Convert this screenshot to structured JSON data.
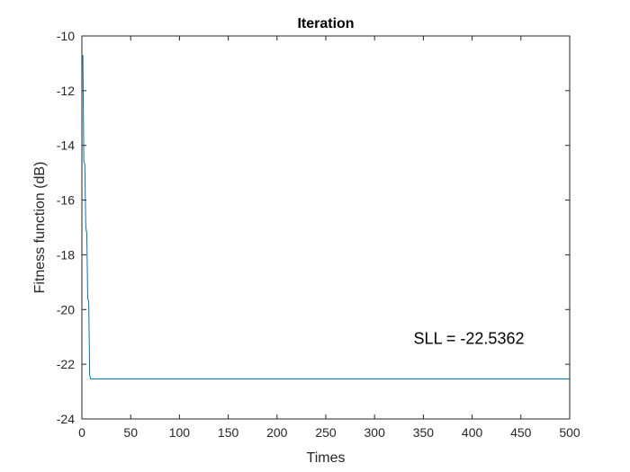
{
  "chart_data": {
    "type": "line",
    "title": "Iteration",
    "xlabel": "Times",
    "ylabel": "Fitness function (dB)",
    "xlim": [
      0,
      500
    ],
    "ylim": [
      -24,
      -10
    ],
    "xticks": [
      0,
      50,
      100,
      150,
      200,
      250,
      300,
      350,
      400,
      450,
      500
    ],
    "yticks": [
      -10,
      -12,
      -14,
      -16,
      -18,
      -20,
      -22,
      -24
    ],
    "grid": false,
    "line_color": "#0072BD",
    "annotation": {
      "text": "SLL = -22.5362",
      "x": 340,
      "y": -21.25
    },
    "series": [
      {
        "x": [
          1,
          2,
          3,
          4,
          5,
          6,
          7,
          8,
          9,
          500
        ],
        "y": [
          -10.7,
          -14.6,
          -14.7,
          -17.0,
          -17.2,
          -19.6,
          -19.7,
          -22.4,
          -22.5362,
          -22.5362
        ]
      }
    ]
  }
}
